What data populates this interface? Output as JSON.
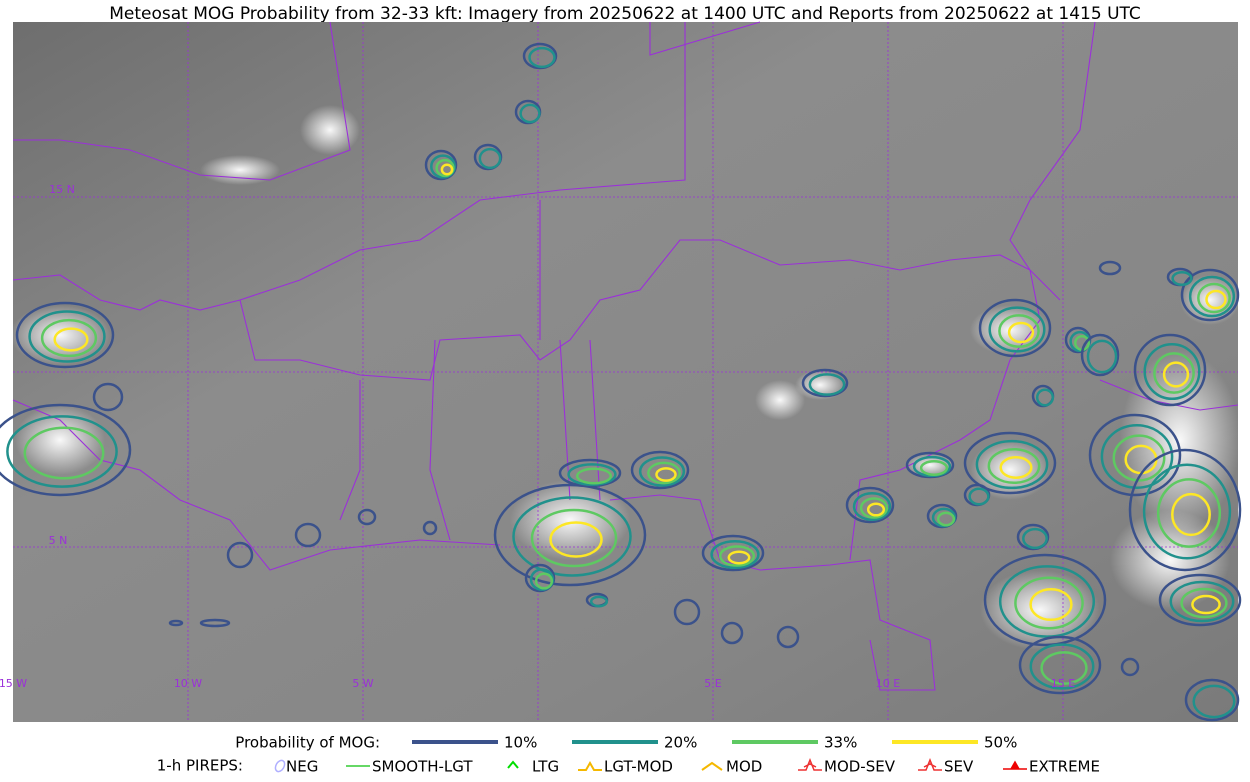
{
  "title": "Meteosat MOG Probability from 32-33 kft: Imagery from 20250622 at 1400 UTC and Reports from 20250622 at 1415 UTC",
  "grid_labels": {
    "latitude": [
      "15 N",
      "5 N"
    ],
    "longitude": [
      "15 W",
      "10 W",
      "5 W",
      "5 E",
      "10 E",
      "15 E"
    ]
  },
  "legend": {
    "probability_label": "Probability of MOG:",
    "probability_levels": [
      {
        "label": "10%",
        "color": "#3b528b"
      },
      {
        "label": "20%",
        "color": "#21918c"
      },
      {
        "label": "33%",
        "color": "#5ec962"
      },
      {
        "label": "50%",
        "color": "#fde725"
      }
    ],
    "pireps_label": "1-h PIREPS:",
    "pireps": [
      {
        "label": "NEG",
        "color": "#b0b0ff"
      },
      {
        "label": "SMOOTH-LGT",
        "color": "#33cc33"
      },
      {
        "label": "LTG",
        "color": "#00dd00"
      },
      {
        "label": "LGT-MOD",
        "color": "#f5b800"
      },
      {
        "label": "MOD",
        "color": "#f5b800"
      },
      {
        "label": "MOD-SEV",
        "color": "#ee3030"
      },
      {
        "label": "SEV",
        "color": "#ee3030"
      },
      {
        "label": "EXTREME",
        "color": "#ee0000"
      }
    ]
  }
}
